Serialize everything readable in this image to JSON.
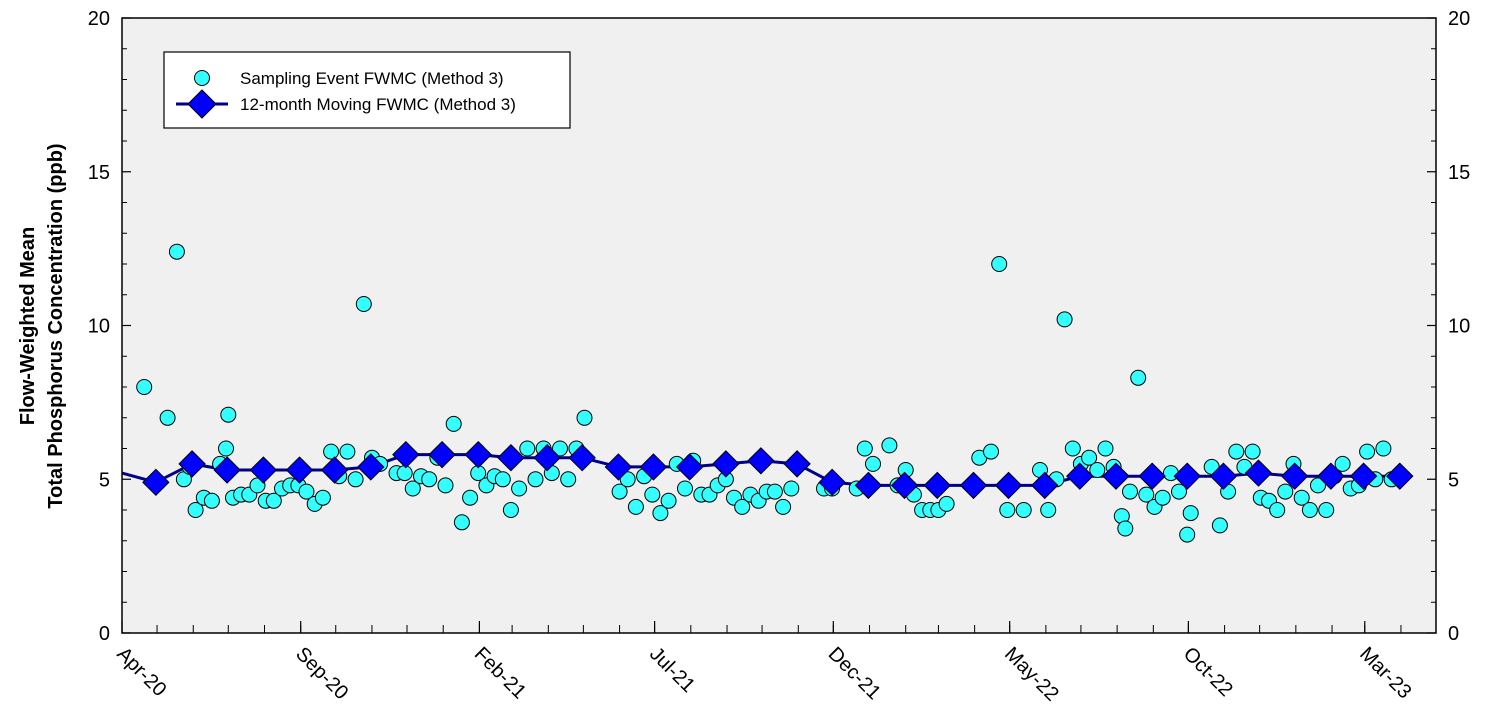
{
  "chart_data": {
    "type": "scatter",
    "title": "",
    "ylabel_line1": "Flow-Weighted Mean",
    "ylabel_line2": "Total Phosphorus Concentration (ppb)",
    "xlabel": "",
    "ylim": [
      0,
      20
    ],
    "y_ticks": [
      0,
      5,
      10,
      15,
      20
    ],
    "x_range": [
      "2020-04-01",
      "2023-05-01"
    ],
    "x_tick_labels": [
      "Apr-20",
      "Sep-20",
      "Feb-21",
      "Jul-21",
      "Dec-21",
      "May-22",
      "Oct-22",
      "Mar-23"
    ],
    "x_tick_dates": [
      "2020-04-01",
      "2020-09-01",
      "2021-02-01",
      "2021-07-01",
      "2021-12-01",
      "2022-05-01",
      "2022-10-01",
      "2023-03-01"
    ],
    "legend_position": "top-left",
    "grid": false,
    "background": "#f0f0f0",
    "series": [
      {
        "name": "Sampling Event FWMC (Method 3)",
        "style": "scatter",
        "color": "#33ffff",
        "marker": "circle",
        "points": [
          [
            "2020-04-20",
            8.0
          ],
          [
            "2020-05-10",
            7.0
          ],
          [
            "2020-05-18",
            12.4
          ],
          [
            "2020-05-24",
            5.0
          ],
          [
            "2020-05-29",
            5.4
          ],
          [
            "2020-06-03",
            4.0
          ],
          [
            "2020-06-10",
            4.4
          ],
          [
            "2020-06-17",
            4.3
          ],
          [
            "2020-06-24",
            5.5
          ],
          [
            "2020-06-29",
            6.0
          ],
          [
            "2020-07-01",
            7.1
          ],
          [
            "2020-07-05",
            4.4
          ],
          [
            "2020-07-12",
            4.5
          ],
          [
            "2020-07-19",
            4.5
          ],
          [
            "2020-07-26",
            4.8
          ],
          [
            "2020-08-02",
            4.3
          ],
          [
            "2020-08-09",
            4.3
          ],
          [
            "2020-08-16",
            4.7
          ],
          [
            "2020-08-23",
            4.8
          ],
          [
            "2020-08-30",
            4.8
          ],
          [
            "2020-09-06",
            4.6
          ],
          [
            "2020-09-13",
            4.2
          ],
          [
            "2020-09-20",
            4.4
          ],
          [
            "2020-09-27",
            5.9
          ],
          [
            "2020-10-04",
            5.1
          ],
          [
            "2020-10-11",
            5.9
          ],
          [
            "2020-10-18",
            5.0
          ],
          [
            "2020-10-25",
            10.7
          ],
          [
            "2020-11-01",
            5.7
          ],
          [
            "2020-11-08",
            5.5
          ],
          [
            "2020-11-22",
            5.2
          ],
          [
            "2020-11-29",
            5.2
          ],
          [
            "2020-12-06",
            4.7
          ],
          [
            "2020-12-13",
            5.1
          ],
          [
            "2020-12-20",
            5.0
          ],
          [
            "2020-12-27",
            5.7
          ],
          [
            "2021-01-03",
            4.8
          ],
          [
            "2021-01-10",
            6.8
          ],
          [
            "2021-01-17",
            3.6
          ],
          [
            "2021-01-24",
            4.4
          ],
          [
            "2021-01-31",
            5.2
          ],
          [
            "2021-02-07",
            4.8
          ],
          [
            "2021-02-14",
            5.1
          ],
          [
            "2021-02-21",
            5.0
          ],
          [
            "2021-02-28",
            4.0
          ],
          [
            "2021-03-07",
            4.7
          ],
          [
            "2021-03-14",
            6.0
          ],
          [
            "2021-03-21",
            5.0
          ],
          [
            "2021-03-28",
            6.0
          ],
          [
            "2021-04-04",
            5.2
          ],
          [
            "2021-04-11",
            6.0
          ],
          [
            "2021-04-18",
            5.0
          ],
          [
            "2021-04-25",
            6.0
          ],
          [
            "2021-05-02",
            7.0
          ],
          [
            "2021-06-01",
            4.6
          ],
          [
            "2021-06-08",
            5.0
          ],
          [
            "2021-06-15",
            4.1
          ],
          [
            "2021-06-22",
            5.1
          ],
          [
            "2021-06-29",
            4.5
          ],
          [
            "2021-07-06",
            3.9
          ],
          [
            "2021-07-13",
            4.3
          ],
          [
            "2021-07-20",
            5.5
          ],
          [
            "2021-07-27",
            4.7
          ],
          [
            "2021-08-03",
            5.6
          ],
          [
            "2021-08-10",
            4.5
          ],
          [
            "2021-08-17",
            4.5
          ],
          [
            "2021-08-24",
            4.8
          ],
          [
            "2021-08-31",
            5.0
          ],
          [
            "2021-09-07",
            4.4
          ],
          [
            "2021-09-14",
            4.1
          ],
          [
            "2021-09-21",
            4.5
          ],
          [
            "2021-09-28",
            4.3
          ],
          [
            "2021-10-05",
            4.6
          ],
          [
            "2021-10-12",
            4.6
          ],
          [
            "2021-10-19",
            4.1
          ],
          [
            "2021-10-26",
            4.7
          ],
          [
            "2021-11-23",
            4.7
          ],
          [
            "2021-11-30",
            4.7
          ],
          [
            "2021-12-21",
            4.7
          ],
          [
            "2021-12-28",
            6.0
          ],
          [
            "2022-01-04",
            5.5
          ],
          [
            "2022-01-18",
            6.1
          ],
          [
            "2022-01-25",
            4.8
          ],
          [
            "2022-02-01",
            5.3
          ],
          [
            "2022-02-08",
            4.5
          ],
          [
            "2022-02-15",
            4.0
          ],
          [
            "2022-02-22",
            4.0
          ],
          [
            "2022-03-01",
            4.0
          ],
          [
            "2022-03-08",
            4.2
          ],
          [
            "2022-04-05",
            5.7
          ],
          [
            "2022-04-15",
            5.9
          ],
          [
            "2022-04-22",
            12.0
          ],
          [
            "2022-04-29",
            4.0
          ],
          [
            "2022-05-13",
            4.0
          ],
          [
            "2022-05-27",
            5.3
          ],
          [
            "2022-06-03",
            4.0
          ],
          [
            "2022-06-10",
            5.0
          ],
          [
            "2022-06-17",
            10.2
          ],
          [
            "2022-06-24",
            6.0
          ],
          [
            "2022-07-01",
            5.5
          ],
          [
            "2022-07-08",
            5.7
          ],
          [
            "2022-07-15",
            5.3
          ],
          [
            "2022-07-22",
            6.0
          ],
          [
            "2022-07-29",
            5.4
          ],
          [
            "2022-08-05",
            3.8
          ],
          [
            "2022-08-08",
            3.4
          ],
          [
            "2022-08-12",
            4.6
          ],
          [
            "2022-08-19",
            8.3
          ],
          [
            "2022-08-26",
            4.5
          ],
          [
            "2022-09-02",
            4.1
          ],
          [
            "2022-09-09",
            4.4
          ],
          [
            "2022-09-16",
            5.2
          ],
          [
            "2022-09-23",
            4.6
          ],
          [
            "2022-09-30",
            3.2
          ],
          [
            "2022-10-03",
            3.9
          ],
          [
            "2022-10-21",
            5.4
          ],
          [
            "2022-10-28",
            3.5
          ],
          [
            "2022-11-04",
            4.6
          ],
          [
            "2022-11-11",
            5.9
          ],
          [
            "2022-11-18",
            5.4
          ],
          [
            "2022-11-25",
            5.9
          ],
          [
            "2022-12-02",
            4.4
          ],
          [
            "2022-12-09",
            4.3
          ],
          [
            "2022-12-16",
            4.0
          ],
          [
            "2022-12-23",
            4.6
          ],
          [
            "2022-12-30",
            5.5
          ],
          [
            "2023-01-06",
            4.4
          ],
          [
            "2023-01-13",
            4.0
          ],
          [
            "2023-01-20",
            4.8
          ],
          [
            "2023-01-27",
            4.0
          ],
          [
            "2023-02-03",
            5.1
          ],
          [
            "2023-02-10",
            5.5
          ],
          [
            "2023-02-17",
            4.7
          ],
          [
            "2023-02-24",
            4.8
          ],
          [
            "2023-03-03",
            5.9
          ],
          [
            "2023-03-10",
            5.0
          ],
          [
            "2023-03-17",
            6.0
          ],
          [
            "2023-03-24",
            5.0
          ]
        ]
      },
      {
        "name": "12-month Moving FWMC (Method 3)",
        "style": "line-diamond",
        "color": "#0000ff",
        "line_color": "#00008b",
        "marker": "diamond",
        "points": [
          [
            "2020-04-01",
            5.2
          ],
          [
            "2020-04-30",
            4.9
          ],
          [
            "2020-05-31",
            5.5
          ],
          [
            "2020-06-30",
            5.3
          ],
          [
            "2020-07-31",
            5.3
          ],
          [
            "2020-08-31",
            5.3
          ],
          [
            "2020-09-30",
            5.3
          ],
          [
            "2020-10-31",
            5.4
          ],
          [
            "2020-11-30",
            5.8
          ],
          [
            "2020-12-31",
            5.8
          ],
          [
            "2021-01-31",
            5.8
          ],
          [
            "2021-02-28",
            5.7
          ],
          [
            "2021-03-31",
            5.7
          ],
          [
            "2021-04-30",
            5.7
          ],
          [
            "2021-05-31",
            5.4
          ],
          [
            "2021-06-30",
            5.4
          ],
          [
            "2021-07-31",
            5.4
          ],
          [
            "2021-08-31",
            5.5
          ],
          [
            "2021-09-30",
            5.6
          ],
          [
            "2021-10-31",
            5.5
          ],
          [
            "2021-11-30",
            4.9
          ],
          [
            "2021-12-31",
            4.8
          ],
          [
            "2022-01-31",
            4.8
          ],
          [
            "2022-02-28",
            4.8
          ],
          [
            "2022-03-31",
            4.8
          ],
          [
            "2022-04-30",
            4.8
          ],
          [
            "2022-05-31",
            4.8
          ],
          [
            "2022-06-30",
            5.1
          ],
          [
            "2022-07-31",
            5.1
          ],
          [
            "2022-08-31",
            5.1
          ],
          [
            "2022-09-30",
            5.1
          ],
          [
            "2022-10-31",
            5.1
          ],
          [
            "2022-11-30",
            5.2
          ],
          [
            "2022-12-31",
            5.1
          ],
          [
            "2023-01-31",
            5.1
          ],
          [
            "2023-02-28",
            5.1
          ],
          [
            "2023-03-31",
            5.1
          ]
        ]
      }
    ]
  }
}
